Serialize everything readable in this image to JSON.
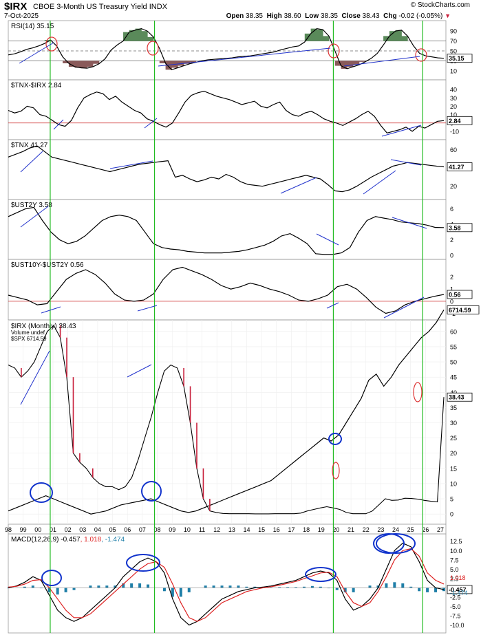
{
  "header": {
    "symbol": "$IRX",
    "name": "CBOE 3-Month US Treasury Yield",
    "exchange": "INDX",
    "date": "7-Oct-2025",
    "brand": "© StockCharts.com",
    "open_label": "Open",
    "open": "38.35",
    "high_label": "High",
    "high": "38.60",
    "low_label": "Low",
    "low": "38.35",
    "close_label": "Close",
    "close": "38.43",
    "chg_label": "Chg",
    "chg": "-0.02 (-0.05%)"
  },
  "colors": {
    "price": "#000000",
    "down_bars": "#c81e3a",
    "cursor_lines": "#22bb22",
    "trendlines": "#2233cc",
    "highlight_circles_red": "#dd3333",
    "highlight_circles_blue": "#1133cc",
    "reference_line": "#cc2222",
    "rsi_overbought_fill": "#5a8a5a",
    "rsi_oversold_fill": "#8a5a5a",
    "macd_signal": "#dd2222",
    "macd_histogram": "#1f7fa8"
  },
  "x_axis": {
    "ticks": [
      "98",
      "99",
      "00",
      "01",
      "02",
      "03",
      "04",
      "05",
      "06",
      "07",
      "08",
      "09",
      "10",
      "11",
      "12",
      "13",
      "14",
      "15",
      "16",
      "17",
      "18",
      "19",
      "20",
      "21",
      "22",
      "23",
      "24",
      "25",
      "26",
      "27"
    ],
    "vertical_markers": [
      "01",
      "08",
      "20",
      "26"
    ]
  },
  "chart_data": [
    {
      "type": "line",
      "id": "rsi",
      "title": "RSI(14) 35.15",
      "y_ticks": [
        10,
        30,
        50,
        70,
        90
      ],
      "reference_lines": [
        30,
        50,
        70
      ],
      "ylim": [
        0,
        100
      ],
      "last_value": "35.15",
      "series": [
        {
          "values": [
            42,
            44,
            48,
            53,
            56,
            60,
            65,
            72,
            60,
            38,
            25,
            18,
            16,
            15,
            18,
            24,
            34,
            52,
            62,
            70,
            88,
            92,
            95,
            90,
            78,
            55,
            25,
            12,
            16,
            20,
            24,
            27,
            30,
            32,
            33,
            34,
            35,
            36,
            38,
            39,
            40,
            42,
            44,
            46,
            48,
            52,
            55,
            58,
            60,
            68,
            85,
            95,
            93,
            80,
            50,
            20,
            14,
            18,
            22,
            28,
            35,
            45,
            62,
            80,
            90,
            92,
            80,
            60,
            45,
            40,
            38,
            36,
            35.15
          ]
        }
      ]
    },
    {
      "type": "line",
      "id": "tnx_irx",
      "title": "$TNX-$IRX 2.84",
      "y_ticks": [
        -10,
        0,
        10,
        20,
        30,
        40
      ],
      "reference_lines": [
        0
      ],
      "ylim": [
        -15,
        45
      ],
      "last_value": "2.84",
      "series": [
        {
          "values": [
            15,
            12,
            14,
            20,
            18,
            10,
            8,
            3,
            -2,
            -4,
            3,
            18,
            30,
            34,
            37,
            35,
            28,
            32,
            25,
            20,
            15,
            12,
            5,
            2,
            -2,
            -5,
            0,
            12,
            25,
            33,
            36,
            38,
            35,
            32,
            30,
            28,
            25,
            22,
            24,
            26,
            20,
            18,
            22,
            25,
            15,
            10,
            8,
            12,
            14,
            10,
            5,
            2,
            0,
            -3,
            1,
            5,
            10,
            14,
            8,
            -3,
            -12,
            -10,
            -8,
            -5,
            -10,
            -4,
            -6,
            -2,
            2,
            2.84
          ]
        }
      ]
    },
    {
      "type": "line",
      "id": "tnx",
      "title": "$TNX 41.27",
      "y_ticks": [
        20,
        40,
        60
      ],
      "ylim": [
        10,
        65
      ],
      "last_value": "41.27",
      "series": [
        {
          "values": [
            52,
            55,
            58,
            62,
            64,
            58,
            52,
            50,
            48,
            46,
            44,
            42,
            40,
            38,
            36,
            38,
            40,
            42,
            44,
            45,
            46,
            47,
            48,
            30,
            32,
            28,
            25,
            27,
            30,
            28,
            33,
            30,
            25,
            22,
            21,
            20,
            22,
            24,
            26,
            28,
            30,
            32,
            30,
            28,
            22,
            15,
            14,
            16,
            20,
            25,
            30,
            34,
            38,
            42,
            44,
            46,
            45,
            44,
            43,
            42,
            41.27
          ]
        }
      ]
    },
    {
      "type": "line",
      "id": "ust2y",
      "title": "$UST2Y 3.58",
      "y_ticks": [
        0,
        2,
        4,
        6
      ],
      "ylim": [
        0,
        6.5
      ],
      "last_value": "3.58",
      "series": [
        {
          "values": [
            5,
            5.5,
            6,
            6.2,
            4.5,
            3,
            2,
            1.5,
            1.8,
            2.5,
            3.5,
            4.5,
            5,
            5.2,
            5,
            4.5,
            3,
            1.5,
            1,
            0.8,
            0.7,
            0.5,
            0.4,
            0.3,
            0.3,
            0.3,
            0.4,
            0.5,
            0.7,
            1,
            1.3,
            1.8,
            2.5,
            2.8,
            2.2,
            1.5,
            0.2,
            0.1,
            0.1,
            0.3,
            1,
            3,
            4.5,
            5,
            4.8,
            4.6,
            4.3,
            4.2,
            4.1,
            3.9,
            3.6,
            3.58
          ]
        }
      ]
    },
    {
      "type": "line",
      "id": "ust10y_2y",
      "title": "$UST10Y-$UST2Y 0.56",
      "y_ticks": [
        -1,
        0,
        1,
        2
      ],
      "reference_lines": [
        0
      ],
      "ylim": [
        -1.2,
        3
      ],
      "last_value": "0.56",
      "series": [
        {
          "values": [
            0.5,
            0.3,
            0.1,
            -0.3,
            -0.2,
            0.8,
            1.8,
            2.3,
            2.6,
            2.2,
            1.5,
            0.6,
            0.1,
            0,
            0.1,
            0.6,
            1.8,
            2.6,
            2.8,
            2.5,
            2.2,
            1.8,
            1.3,
            1,
            1.2,
            1.5,
            1.3,
            1,
            0.8,
            0.5,
            0.1,
            0,
            0.2,
            0.5,
            1.2,
            1.4,
            1,
            0.3,
            -0.5,
            -1,
            -0.8,
            -0.3,
            0,
            0.2,
            0.4,
            0.56
          ]
        }
      ]
    },
    {
      "type": "line",
      "id": "main",
      "title": "$IRX (Monthly) 38.43",
      "legend": [
        "$IRX (Monthly) 38.43",
        "Volume undef",
        "$SPX 6714.59"
      ],
      "y_ticks": [
        0,
        5,
        10,
        15,
        20,
        25,
        30,
        35,
        40,
        45,
        50,
        55,
        60
      ],
      "ylim": [
        -2,
        62
      ],
      "last_value": "38.43",
      "spx_last_value": "6714.59",
      "series": [
        {
          "name": "$IRX (Monthly)",
          "values": [
            49,
            48,
            45,
            47,
            50,
            55,
            60,
            62,
            58,
            45,
            20,
            17,
            15,
            12,
            10,
            9,
            9,
            8,
            9,
            12,
            18,
            25,
            32,
            40,
            47,
            49,
            48,
            42,
            30,
            15,
            5,
            1,
            0.5,
            0.2,
            0.1,
            0.1,
            0.1,
            0.1,
            0.05,
            0.05,
            0.05,
            0.1,
            0.1,
            0.1,
            0.1,
            0.3,
            1,
            1.5,
            2,
            2.4,
            2,
            1.5,
            0.5,
            0.1,
            0.1,
            0.1,
            1,
            3,
            5,
            4.5,
            4.6,
            5.2,
            5.1,
            4.9,
            4.5,
            4.2,
            4,
            38.43
          ]
        },
        {
          "name": "$SPX",
          "values": [
            1,
            2,
            3,
            4,
            5,
            6,
            5,
            4,
            3,
            2,
            1,
            0,
            0.5,
            1,
            2,
            3,
            3.5,
            4,
            4.5,
            5,
            4,
            3,
            2,
            1,
            0.5,
            1,
            2,
            3,
            4,
            5,
            6,
            7,
            8,
            9,
            10,
            11,
            13,
            15,
            17,
            19,
            21,
            23,
            25,
            24,
            26,
            30,
            34,
            38,
            44,
            46,
            42,
            45,
            49,
            52,
            55,
            58,
            60,
            63,
            67.1
          ]
        }
      ]
    },
    {
      "type": "line",
      "id": "macd",
      "title": "MACD(12,26,9) -0.457, 1.018, -1.474",
      "legend": [
        "MACD(12,26,9) -0.457",
        "1.018",
        "-1.474"
      ],
      "y_ticks": [
        -10.0,
        -7.5,
        -5.0,
        -2.5,
        0,
        2.5,
        5.0,
        7.5,
        10.0,
        12.5
      ],
      "ylim": [
        -11,
        13
      ],
      "last_value_signal": "1.018",
      "last_value_macd": "-0.457",
      "last_value_hist": "-1.474",
      "series": [
        {
          "name": "MACD",
          "values": [
            0,
            0.5,
            1.5,
            3,
            2,
            -2,
            -6,
            -8,
            -9,
            -8,
            -6,
            -4,
            -2,
            0,
            3,
            5,
            7,
            8,
            7,
            4,
            -3,
            -8,
            -10,
            -9,
            -7,
            -5,
            -3,
            -2,
            -1,
            -0.5,
            0,
            0.2,
            0.5,
            1,
            1.5,
            2,
            3,
            4,
            4.5,
            4,
            2,
            -3,
            -6,
            -5,
            -3,
            0,
            5,
            10,
            12,
            11,
            7,
            2,
            0,
            -0.457
          ]
        },
        {
          "name": "Signal",
          "values": [
            0.2,
            0.4,
            1,
            2,
            2.2,
            0,
            -3,
            -6,
            -8,
            -8,
            -7,
            -5,
            -3,
            -1,
            1,
            3,
            5,
            6.5,
            7,
            5.5,
            1,
            -4,
            -8,
            -9,
            -8,
            -6,
            -4,
            -3,
            -2,
            -1,
            -0.5,
            0,
            0.3,
            0.7,
            1.2,
            1.7,
            2.5,
            3.2,
            4,
            4.2,
            3,
            -1,
            -4,
            -5,
            -4,
            -1,
            3,
            7.5,
            10,
            10.5,
            8.5,
            4,
            2,
            1.018
          ]
        }
      ]
    }
  ]
}
